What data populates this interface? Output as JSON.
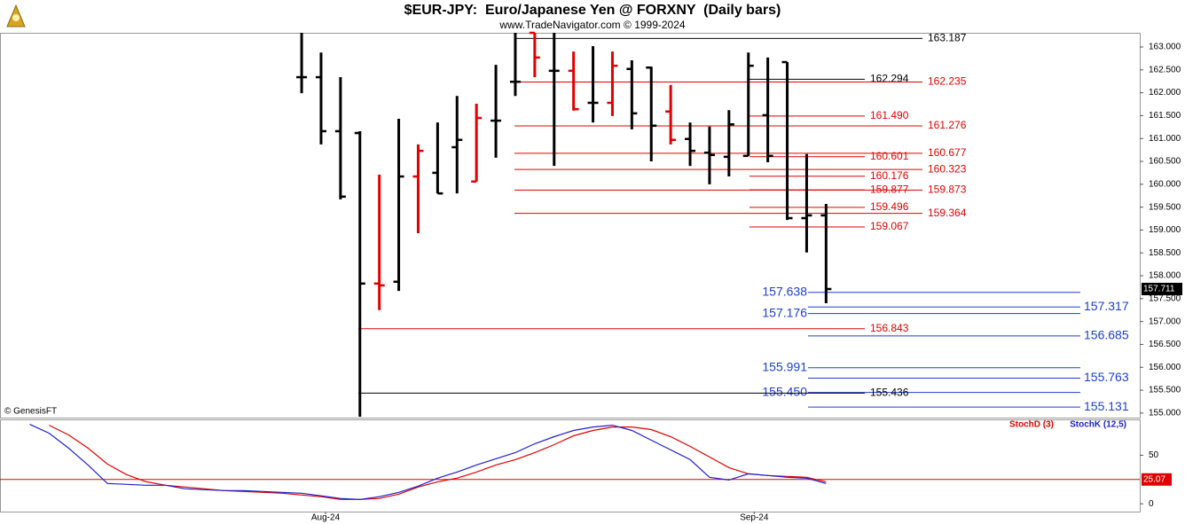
{
  "chart_data": [
    {
      "type": "ohlc",
      "title": "$EUR-JPY:  Euro/Japanese Yen @ FORXNY  (Daily bars)",
      "subtitle": "www.TradeNavigator.com © 1999-2024",
      "annotation": "© GenesisFT",
      "x": [
        0,
        1,
        2,
        3,
        4,
        5,
        6,
        7,
        8,
        9,
        10,
        11,
        12,
        13,
        14,
        15,
        16,
        17,
        18,
        19,
        20,
        21,
        22,
        23,
        24,
        25,
        26,
        27
      ],
      "open": [
        162.34,
        162.34,
        161.16,
        161.12,
        157.83,
        157.87,
        160.17,
        160.25,
        160.81,
        160.06,
        161.39,
        162.24,
        163.31,
        162.48,
        162.48,
        161.78,
        161.78,
        162.52,
        162.55,
        161.59,
        160.99,
        160.69,
        160.6,
        160.62,
        161.51,
        162.67,
        159.26,
        159.32
      ],
      "high": [
        163.31,
        162.88,
        162.34,
        161.16,
        160.21,
        161.43,
        160.87,
        161.35,
        161.93,
        161.76,
        162.61,
        163.31,
        163.31,
        163.31,
        162.9,
        163.02,
        162.9,
        162.71,
        162.57,
        162.17,
        161.35,
        161.26,
        161.62,
        162.88,
        162.77,
        162.67,
        160.66,
        159.57
      ],
      "low": [
        161.99,
        160.87,
        159.67,
        154.92,
        157.25,
        157.67,
        158.93,
        159.8,
        159.8,
        160.06,
        160.58,
        161.93,
        162.34,
        160.4,
        161.61,
        161.35,
        161.49,
        161.2,
        160.5,
        160.87,
        160.4,
        160.0,
        160.17,
        160.62,
        160.48,
        159.22,
        158.51,
        157.4
      ],
      "close": [
        162.34,
        161.16,
        159.73,
        157.83,
        157.79,
        160.17,
        160.73,
        159.8,
        160.97,
        161.45,
        161.39,
        162.24,
        162.77,
        162.48,
        161.64,
        161.78,
        162.59,
        161.55,
        161.28,
        160.97,
        160.73,
        160.64,
        161.31,
        162.59,
        160.62,
        159.26,
        159.32,
        157.71
      ],
      "bar_colors": [
        "#000",
        "#000",
        "#000",
        "#000",
        "#e00000",
        "#000",
        "#e00000",
        "#000",
        "#000",
        "#e00000",
        "#000",
        "#000",
        "#e00000",
        "#000",
        "#e00000",
        "#000",
        "#e00000",
        "#000",
        "#000",
        "#e00000",
        "#000",
        "#000",
        "#000",
        "#000",
        "#000",
        "#000",
        "#000",
        "#000"
      ],
      "xlim": [
        -15.53,
        43.15
      ],
      "ylim": [
        154.92,
        163.31
      ],
      "yticks": [
        {
          "value": 155,
          "label": "155.000"
        },
        {
          "value": 155.5,
          "label": "155.500"
        },
        {
          "value": 156,
          "label": "156.000"
        },
        {
          "value": 156.5,
          "label": "156.500"
        },
        {
          "value": 157,
          "label": "157.000"
        },
        {
          "value": 157.5,
          "label": "157.500"
        },
        {
          "value": 158,
          "label": "158.000"
        },
        {
          "value": 158.5,
          "label": "158.500"
        },
        {
          "value": 159,
          "label": "159.000"
        },
        {
          "value": 159.5,
          "label": "159.500"
        },
        {
          "value": 160,
          "label": "160.000"
        },
        {
          "value": 160.5,
          "label": "160.500"
        },
        {
          "value": 161,
          "label": "161.000"
        },
        {
          "value": 161.5,
          "label": "161.500"
        },
        {
          "value": 162,
          "label": "162.000"
        },
        {
          "value": 162.5,
          "label": "162.500"
        },
        {
          "value": 163,
          "label": "163.000"
        }
      ],
      "last_price": 157.711,
      "levels": [
        {
          "value": 163.187,
          "label": "163.187",
          "color": "#000",
          "style": "long"
        },
        {
          "value": 162.294,
          "label": "162.294",
          "color": "#000",
          "style": "short"
        },
        {
          "value": 162.235,
          "label": "162.235",
          "color": "#e00000",
          "style": "long"
        },
        {
          "value": 161.49,
          "label": "161.490",
          "color": "#e00000",
          "style": "short"
        },
        {
          "value": 161.276,
          "label": "161.276",
          "color": "#e00000",
          "style": "long"
        },
        {
          "value": 160.601,
          "label": "160.601",
          "color": "#e00000",
          "style": "short"
        },
        {
          "value": 160.677,
          "label": "160.677",
          "color": "#e00000",
          "style": "long"
        },
        {
          "value": 160.323,
          "label": "160.323",
          "color": "#e00000",
          "style": "long"
        },
        {
          "value": 160.176,
          "label": "160.176",
          "color": "#e00000",
          "style": "short"
        },
        {
          "value": 159.877,
          "label": "159.877",
          "color": "#e00000",
          "style": "short"
        },
        {
          "value": 159.873,
          "label": "159.873",
          "color": "#e00000",
          "style": "long"
        },
        {
          "value": 159.496,
          "label": "159.496",
          "color": "#e00000",
          "style": "short"
        },
        {
          "value": 159.364,
          "label": "159.364",
          "color": "#e00000",
          "style": "long"
        },
        {
          "value": 159.067,
          "label": "159.067",
          "color": "#e00000",
          "style": "short"
        },
        {
          "value": 157.638,
          "label": "157.638",
          "color": "#1f3fcf",
          "style": "blue-left"
        },
        {
          "value": 157.317,
          "label": "157.317",
          "color": "#1f3fcf",
          "style": "blue-right"
        },
        {
          "value": 157.176,
          "label": "157.176",
          "color": "#1f3fcf",
          "style": "blue-left"
        },
        {
          "value": 156.843,
          "label": "156.843",
          "color": "#e00000",
          "style": "wide"
        },
        {
          "value": 156.685,
          "label": "156.685",
          "color": "#1f3fcf",
          "style": "blue-right"
        },
        {
          "value": 155.991,
          "label": "155.991",
          "color": "#1f3fcf",
          "style": "blue-left"
        },
        {
          "value": 155.763,
          "label": "155.763",
          "color": "#1f3fcf",
          "style": "blue-right"
        },
        {
          "value": 155.45,
          "label": "155.450",
          "color": "#1f3fcf",
          "style": "blue-left"
        },
        {
          "value": 155.436,
          "label": "155.436",
          "color": "#000",
          "style": "wide"
        },
        {
          "value": 155.131,
          "label": "155.131",
          "color": "#1f3fcf",
          "style": "blue-right"
        }
      ]
    },
    {
      "type": "line",
      "x": [
        -14,
        -13,
        -12,
        -11,
        -10,
        -9,
        -8,
        -7,
        -6,
        -5,
        -4,
        -3,
        -2,
        -1,
        0,
        1,
        2,
        3,
        4,
        5,
        6,
        7,
        8,
        9,
        10,
        11,
        12,
        13,
        14,
        15,
        16,
        17,
        18,
        19,
        20,
        21,
        22,
        23,
        24,
        25,
        26,
        27
      ],
      "xlim": [
        -15.53,
        43.15
      ],
      "xticks": [
        {
          "value": 1.23,
          "label": "Aug-24"
        },
        {
          "value": 23.3,
          "label": "Sep-24"
        }
      ],
      "ylim": [
        -8,
        86
      ],
      "yticks": [
        0,
        50
      ],
      "reference": 25.07,
      "reference_color": "#e00000",
      "series": [
        {
          "name": "StochD (3)",
          "color": "#e00000",
          "values": [
            null,
            80.9,
            70.9,
            57.3,
            40.9,
            30,
            22.7,
            19.1,
            17.3,
            15.5,
            13.6,
            12.7,
            11.8,
            10.9,
            9.1,
            7.3,
            4.5,
            4.5,
            5.5,
            10,
            17.3,
            22.7,
            26.4,
            32.7,
            40,
            45.5,
            52.7,
            60.9,
            70,
            75.5,
            79.1,
            79.1,
            76.4,
            69.1,
            59.1,
            48.2,
            37.3,
            30.9,
            29.1,
            28.2,
            27.3,
            22.7
          ]
        },
        {
          "name": "StochK (12,5)",
          "color": "#1f1fcf",
          "values": [
            81.8,
            72.7,
            57.3,
            40,
            20.9,
            20,
            19.1,
            19.1,
            15.5,
            14.5,
            13.6,
            13.6,
            12.7,
            11.8,
            10.9,
            8.2,
            5.5,
            4.5,
            7.3,
            11.8,
            18.2,
            26.4,
            32.7,
            40,
            46.4,
            52.7,
            61.8,
            69.1,
            75.5,
            79.1,
            80.9,
            75.5,
            65.5,
            55.5,
            45.5,
            27.3,
            24.5,
            30.9,
            29.1,
            27.3,
            26.4,
            20.9
          ]
        }
      ]
    }
  ]
}
